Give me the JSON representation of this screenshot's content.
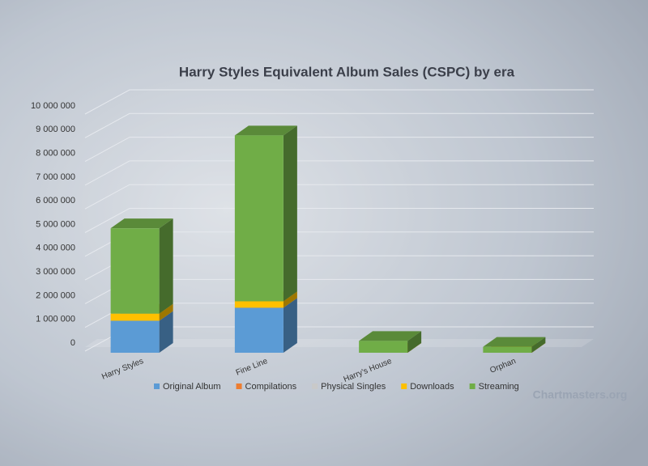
{
  "chart_data": {
    "type": "bar3d_stacked",
    "title": "Harry Styles Equivalent Album Sales (CSPC) by era",
    "watermark": "Chartmasters.org",
    "categories": [
      "Harry Styles",
      "Fine Line",
      "Harry's House",
      "Orphan"
    ],
    "series": [
      {
        "name": "Original Album",
        "color": "#5b9bd5",
        "values": [
          1350000,
          1900000,
          0,
          0
        ]
      },
      {
        "name": "Compilations",
        "color": "#ed7d31",
        "values": [
          0,
          0,
          0,
          0
        ]
      },
      {
        "name": "Physical Singles",
        "color": "#c9c9c9",
        "values": [
          0,
          0,
          0,
          0
        ]
      },
      {
        "name": "Downloads",
        "color": "#ffc000",
        "values": [
          300000,
          270000,
          0,
          0
        ]
      },
      {
        "name": "Streaming",
        "color": "#70ad47",
        "values": [
          3600000,
          7000000,
          500000,
          250000
        ]
      }
    ],
    "ylim": [
      0,
      10000000
    ],
    "yticks": [
      0,
      {
        "value": 1000000,
        "label": "1 000 000"
      },
      {
        "value": 2000000,
        "label": "2 000 000"
      },
      {
        "value": 3000000,
        "label": "3 000 000"
      },
      {
        "value": 4000000,
        "label": "4 000 000"
      },
      {
        "value": 5000000,
        "label": "5 000 000"
      },
      {
        "value": 6000000,
        "label": "6 000 000"
      },
      {
        "value": 7000000,
        "label": "7 000 000"
      },
      {
        "value": 8000000,
        "label": "8 000 000"
      },
      {
        "value": 9000000,
        "label": "9 000 000"
      },
      {
        "value": 10000000,
        "label": "10 000 000"
      }
    ],
    "grid": true,
    "legend": "bottom"
  }
}
